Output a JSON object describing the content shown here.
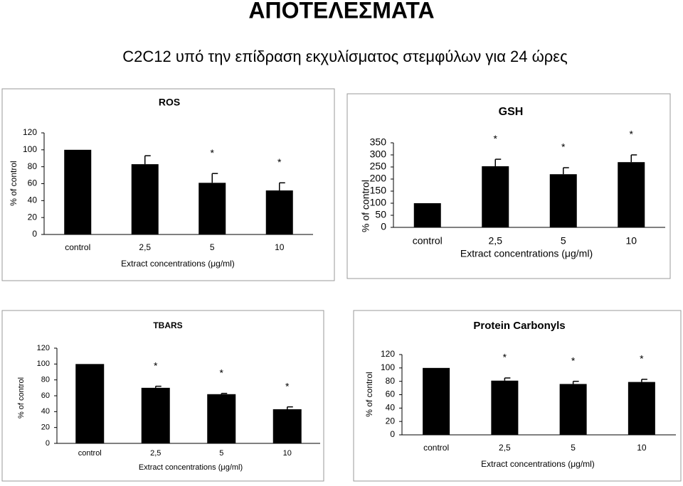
{
  "header": {
    "title": "ΑΠΟΤΕΛΕΣΜΑΤΑ",
    "subtitle": "C2C12 υπό την επίδραση εκχυλίσματος στεμφύλων για 24 ώρες"
  },
  "chart_data": [
    {
      "type": "bar",
      "title": "ROS",
      "x_label": "Extract concentrations (μg/ml)",
      "y_label": "% of control",
      "categories": [
        "control",
        "2,5",
        "5",
        "10"
      ],
      "values": [
        100,
        83,
        61,
        52
      ],
      "errors": [
        null,
        10,
        11,
        9
      ],
      "significance": [
        null,
        null,
        "*",
        "*"
      ],
      "color": "#000000",
      "ylim": [
        0,
        120
      ],
      "yticks": [
        0,
        20,
        40,
        60,
        80,
        100,
        120
      ]
    },
    {
      "type": "bar",
      "title": "GSH",
      "x_label": "Extract concentrations (μg/ml)",
      "y_label": "% of control",
      "categories": [
        "control",
        "2,5",
        "5",
        "10"
      ],
      "values": [
        100,
        253,
        220,
        270
      ],
      "errors": [
        null,
        29,
        27,
        30
      ],
      "significance": [
        null,
        "*",
        "*",
        "*"
      ],
      "color": "#000000",
      "ylim": [
        0,
        350
      ],
      "yticks": [
        0,
        50,
        100,
        150,
        200,
        250,
        300,
        350
      ]
    },
    {
      "type": "bar",
      "title": "TBARS",
      "x_label": "Extract concentrations (μg/ml)",
      "y_label": "% of control",
      "categories": [
        "control",
        "2,5",
        "5",
        "10"
      ],
      "values": [
        100,
        70,
        62,
        43
      ],
      "errors": [
        null,
        2,
        1,
        3
      ],
      "significance": [
        null,
        "*",
        "*",
        "*"
      ],
      "color": "#000000",
      "ylim": [
        0,
        120
      ],
      "yticks": [
        0,
        20,
        40,
        60,
        80,
        100,
        120
      ]
    },
    {
      "type": "bar",
      "title": "Protein Carbonyls",
      "x_label": "Extract concentrations (μg/ml)",
      "y_label": "% of control",
      "categories": [
        "control",
        "2,5",
        "5",
        "10"
      ],
      "values": [
        100,
        81,
        76,
        79
      ],
      "errors": [
        null,
        4,
        4,
        4
      ],
      "significance": [
        null,
        "*",
        "*",
        "*"
      ],
      "color": "#000000",
      "ylim": [
        0,
        120
      ],
      "yticks": [
        0,
        20,
        40,
        60,
        80,
        100,
        120
      ]
    }
  ]
}
